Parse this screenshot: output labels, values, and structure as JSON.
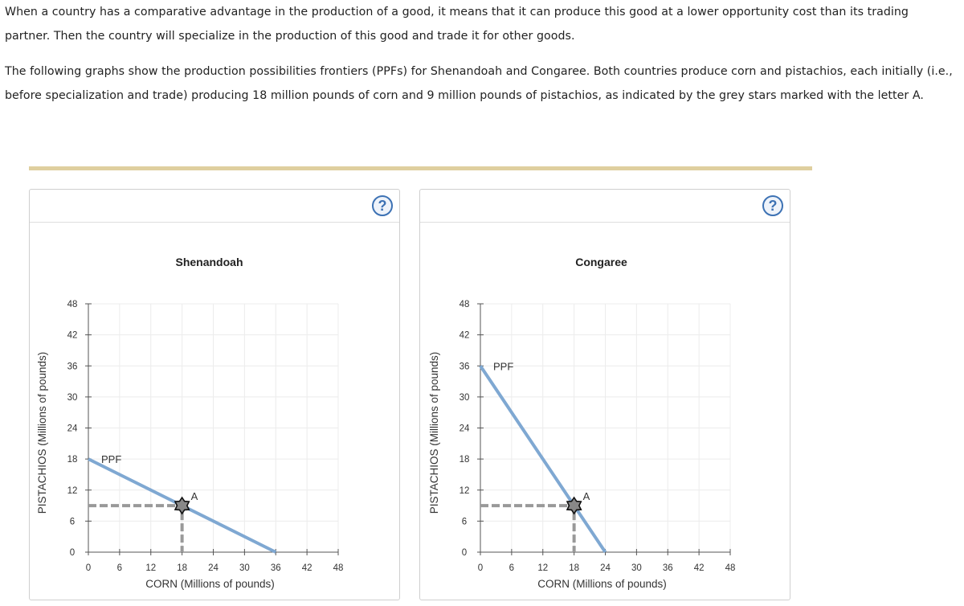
{
  "intro": {
    "paragraph1": "When a country has a comparative advantage in the production of a good, it means that it can produce this good at a lower opportunity cost than its trading partner. Then the country will specialize in the production of this good and trade it for other goods.",
    "paragraph2": "The following graphs show the production possibilities frontiers (PPFs) for Shenandoah and Congaree. Both countries produce corn and pistachios, each initially (i.e., before specialization and trade) producing 18 million pounds of corn and 9 million pounds of pistachios, as indicated by the grey stars marked with the letter A."
  },
  "help_label": "?",
  "colors": {
    "ppf_line": "#7fa8d2",
    "dashed_guide": "#999999",
    "grid": "#ececec",
    "divider": "#dfcf9f",
    "help_icon": "#3d72b4"
  },
  "chart_data": [
    {
      "type": "line",
      "title": "Shenandoah",
      "xlabel": "CORN (Millions of pounds)",
      "ylabel": "PISTACHIOS (Millions of pounds)",
      "xlim": [
        0,
        48
      ],
      "ylim": [
        0,
        48
      ],
      "xticks": [
        0,
        6,
        12,
        18,
        24,
        30,
        36,
        42,
        48
      ],
      "yticks": [
        0,
        6,
        12,
        18,
        24,
        30,
        36,
        42,
        48
      ],
      "grid": true,
      "series": [
        {
          "name": "PPF",
          "x": [
            0,
            36
          ],
          "y": [
            18,
            0
          ]
        }
      ],
      "point": {
        "label": "A",
        "x": 18,
        "y": 9
      }
    },
    {
      "type": "line",
      "title": "Congaree",
      "xlabel": "CORN (Millions of pounds)",
      "ylabel": "PISTACHIOS (Millions of pounds)",
      "xlim": [
        0,
        48
      ],
      "ylim": [
        0,
        48
      ],
      "xticks": [
        0,
        6,
        12,
        18,
        24,
        30,
        36,
        42,
        48
      ],
      "yticks": [
        0,
        6,
        12,
        18,
        24,
        30,
        36,
        42,
        48
      ],
      "grid": true,
      "series": [
        {
          "name": "PPF",
          "x": [
            0,
            24
          ],
          "y": [
            36,
            0
          ]
        }
      ],
      "point": {
        "label": "A",
        "x": 18,
        "y": 9
      }
    }
  ]
}
